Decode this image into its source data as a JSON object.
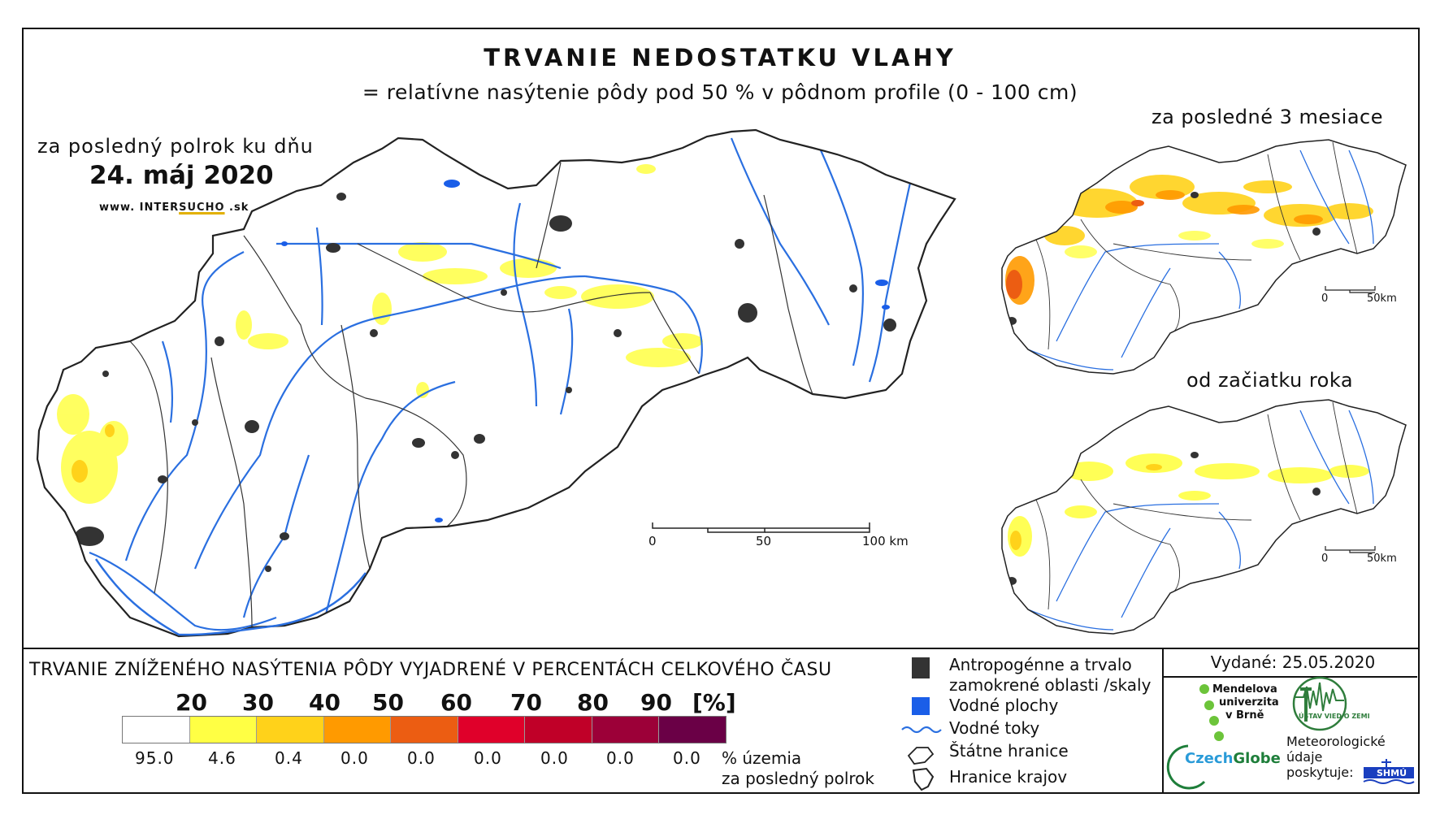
{
  "title": "TRVANIE NEDOSTATKU VLAHY",
  "subtitle": "= relatívne nasýtenie pôdy pod 50 % v pôdnom profile (0 - 100 cm)",
  "main_map": {
    "period_label": "za posledný polrok ku dňu",
    "date": "24. máj 2020",
    "web_prefix": "www. INTER",
    "web_mid": "SUCHO",
    "web_suffix": " .sk",
    "scale": {
      "labels": [
        "0",
        "50",
        "100 km"
      ]
    }
  },
  "inset_3m": {
    "label": "za posledné 3 mesiace",
    "scale": {
      "labels": [
        "0",
        "50km"
      ]
    }
  },
  "inset_ytd": {
    "label": "od začiatku roka",
    "scale": {
      "labels": [
        "0",
        "50km"
      ]
    }
  },
  "legend": {
    "title": "TRVANIE ZNÍŽENÉHO NASÝTENIA PÔDY VYJADRENÉ V PERCENTÁCH CELKOVÉHO ČASU",
    "ticks": [
      "20",
      "30",
      "40",
      "50",
      "60",
      "70",
      "80",
      "90"
    ],
    "unit": "[%]",
    "colors": [
      "#ffffff",
      "#ffff44",
      "#ffd21a",
      "#ff9a00",
      "#ec5d12",
      "#e0002a",
      "#c00028",
      "#9c0038",
      "#6a0046"
    ],
    "percentages": [
      "95.0",
      "4.6",
      "0.4",
      "0.0",
      "0.0",
      "0.0",
      "0.0",
      "0.0",
      "0.0"
    ],
    "share_label_1": "% územia",
    "share_label_2": "za posledný polrok"
  },
  "symbols": {
    "anthropogenic_1": "Antropogénne a trvalo",
    "anthropogenic_2": "zamokrené oblasti /skaly",
    "water_bodies": "Vodné plochy",
    "rivers": "Vodné toky",
    "state_border": "Štátne hranice",
    "regions": "Hranice krajov",
    "anthropogenic_color": "#333333",
    "water_color": "#1a5ee8",
    "river_color": "#2a6fe0"
  },
  "issued": "Vydané: 25.05.2020",
  "logos": {
    "mendel_1": "Mendelova",
    "mendel_2": "univerzita",
    "mendel_3": "v Brně",
    "czechglobe_1": "Czech",
    "czechglobe_2": "Globe",
    "ustav": "ÚSTAV VIED O ZEMI",
    "meteo_1": "Meteorologické",
    "meteo_2": "údaje",
    "meteo_3": "poskytuje:",
    "shmu": "SHMÚ"
  }
}
